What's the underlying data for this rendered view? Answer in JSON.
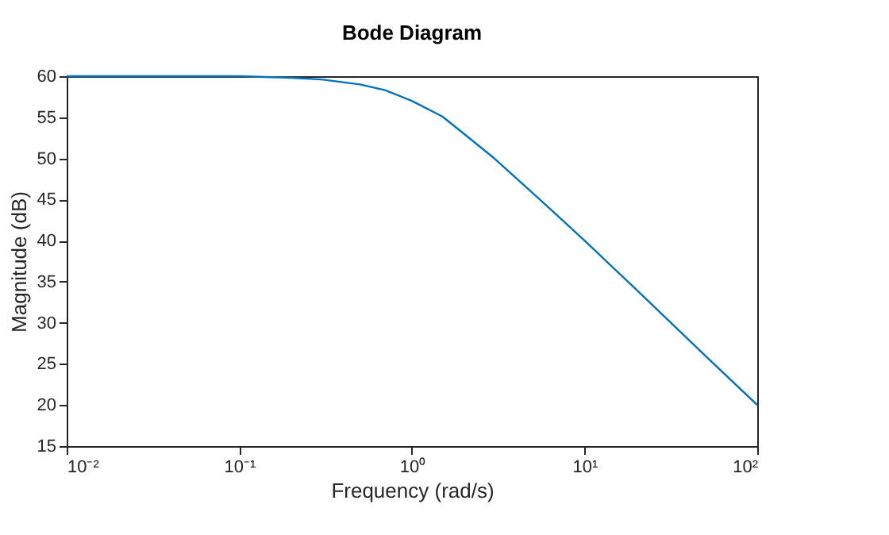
{
  "chart_data": {
    "type": "line",
    "title": "Bode Diagram",
    "xlabel": "Frequency (rad/s)",
    "ylabel": "Magnitude (dB)",
    "x": [
      0.01,
      0.03,
      0.1,
      0.2,
      0.3,
      0.5,
      0.7,
      1,
      1.5,
      2,
      3,
      5,
      7,
      10,
      20,
      50,
      100
    ],
    "series": [
      {
        "color": "#0072bd",
        "values": [
          60,
          60,
          60,
          59.8,
          59.6,
          59,
          58.3,
          57,
          55.1,
          53,
          50,
          45.8,
          43,
          40,
          34,
          26,
          20
        ]
      }
    ],
    "log": "x",
    "grid": false,
    "line_style": "solid",
    "marker": "none",
    "xlim": [
      0.01,
      100
    ],
    "ylim": [
      15,
      60
    ],
    "xticks": [
      {
        "value": 0.01,
        "label": "10⁻²"
      },
      {
        "value": 0.1,
        "label": "10⁻¹"
      },
      {
        "value": 1,
        "label": "10⁰"
      },
      {
        "value": 10,
        "label": "10¹"
      },
      {
        "value": 100,
        "label": "10²"
      }
    ],
    "yticks": [
      15,
      20,
      25,
      30,
      35,
      40,
      45,
      50,
      55,
      60
    ]
  }
}
